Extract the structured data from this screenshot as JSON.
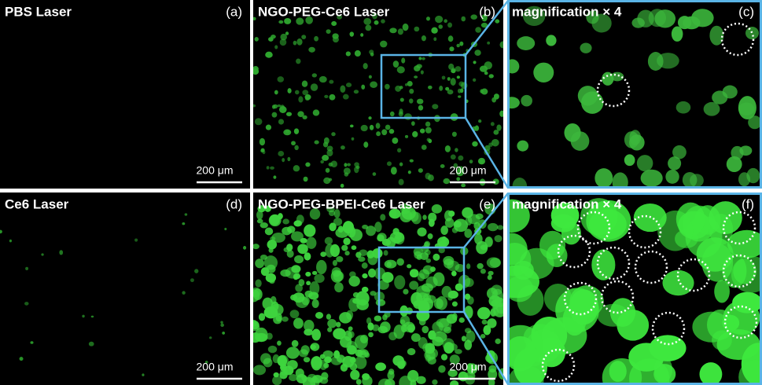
{
  "panels": [
    {
      "title": "PBS Laser",
      "label": "(a)",
      "scale_bar": "200 μm"
    },
    {
      "title": "NGO-PEG-Ce6 Laser",
      "label": "(b)",
      "scale_bar": "200 μm"
    },
    {
      "title": "magnification × 4",
      "label": "(c)"
    },
    {
      "title": "Ce6 Laser",
      "label": "(d)",
      "scale_bar": "200 μm"
    },
    {
      "title": "NGO-PEG-BPEI-Ce6 Laser",
      "label": "(e)",
      "scale_bar": "200 μm"
    },
    {
      "title": "magnification × 4",
      "label": "(f)"
    }
  ]
}
